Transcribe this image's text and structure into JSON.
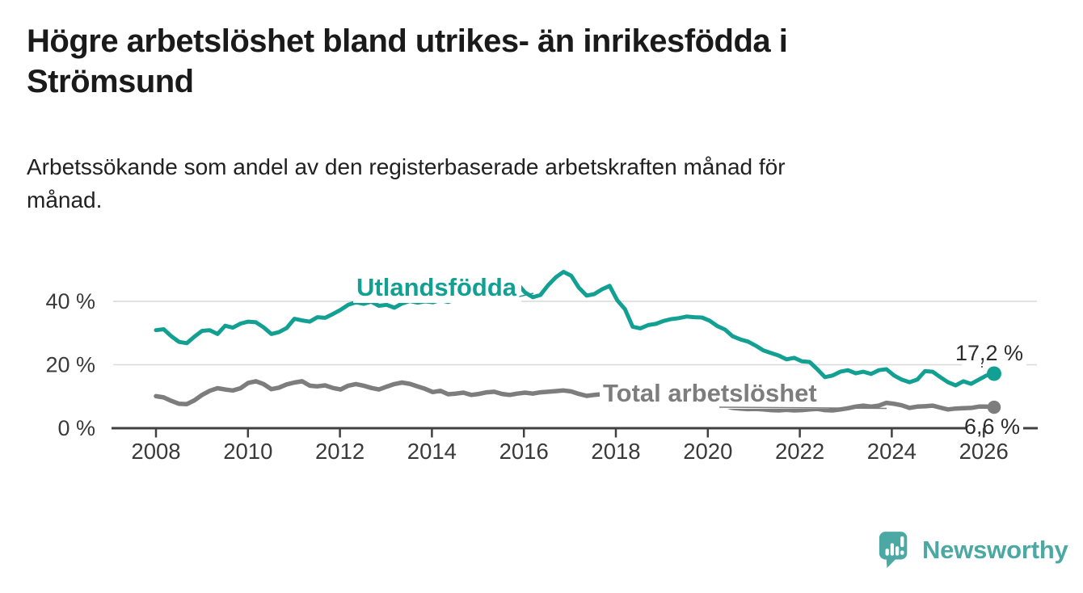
{
  "title_lines": [
    "Högre arbetslöshet bland utrikes- än inrikesfödda i",
    "Strömsund"
  ],
  "subtitle_lines": [
    "Arbetssökande som andel av den registerbaserade arbetskraften månad för",
    "månad."
  ],
  "chart_data": {
    "type": "line",
    "title": "",
    "xlabel": "",
    "ylabel": "",
    "x_unit": "year (monthly observations)",
    "y_unit": "percent of labour force",
    "x_start": 2008.0,
    "x_step_years": 0.1672,
    "xlim": [
      2007.05,
      2027.1
    ],
    "ylim": [
      0,
      52
    ],
    "grid": "horizontal gridlines at 20 and 40",
    "legend_position": "inline labels on lines",
    "x_axis_ticks": [
      2008,
      2010,
      2012,
      2014,
      2016,
      2018,
      2020,
      2022,
      2024,
      2026
    ],
    "x_tick_labels": [
      "2008",
      "2010",
      "2012",
      "2014",
      "2016",
      "2018",
      "2020",
      "2022",
      "2024",
      "2026"
    ],
    "y_axis_ticks": [
      0,
      20,
      40
    ],
    "y_tick_labels": [
      "0 %",
      "20 %",
      "40 %"
    ],
    "axis_color": "#414141",
    "gridline_color": "#d9d9d9",
    "tick_label_color": "#3a3a3a",
    "value_label_color": "#2b2b2b",
    "series": [
      {
        "name": "Utlandsfödda",
        "color": "#12A092",
        "end_label": "17,2 %",
        "end_value": 17.2,
        "values": [
          30.9,
          31.2,
          29.0,
          27.2,
          26.8,
          28.9,
          30.7,
          30.9,
          29.7,
          32.3,
          31.7,
          33.0,
          33.6,
          33.4,
          31.8,
          29.7,
          30.3,
          31.6,
          34.5,
          34.0,
          33.6,
          35.0,
          34.8,
          36.0,
          37.3,
          38.9,
          39.7,
          39.2,
          39.9,
          38.6,
          38.9,
          38.0,
          39.3,
          40.1,
          39.6,
          40.0,
          39.7,
          40.4,
          39.8,
          40.6,
          40.2,
          41.0,
          41.6,
          42.4,
          43.2,
          44.4,
          47.4,
          45.6,
          42.8,
          41.3,
          42.0,
          45.1,
          47.6,
          49.3,
          48.1,
          44.3,
          41.8,
          42.3,
          43.8,
          44.9,
          40.3,
          37.5,
          32.0,
          31.5,
          32.5,
          32.9,
          33.8,
          34.4,
          34.7,
          35.2,
          35.0,
          34.9,
          33.9,
          32.2,
          31.1,
          29.0,
          28.0,
          27.3,
          26.0,
          24.5,
          23.7,
          22.9,
          21.7,
          22.2,
          21.1,
          20.9,
          18.6,
          16.1,
          16.6,
          17.8,
          18.3,
          17.3,
          17.8,
          17.1,
          18.3,
          18.6,
          16.6,
          15.3,
          14.5,
          15.3,
          18.0,
          17.8,
          16.1,
          14.5,
          13.5,
          14.8,
          14.0,
          15.3,
          16.6,
          17.2
        ]
      },
      {
        "name": "Total arbetslöshet",
        "color": "#7D7D7D",
        "end_label": "6,6 %",
        "end_value": 6.6,
        "values": [
          10.1,
          9.7,
          8.6,
          7.7,
          7.6,
          8.8,
          10.5,
          11.8,
          12.6,
          12.2,
          11.9,
          12.6,
          14.3,
          14.8,
          13.9,
          12.3,
          12.8,
          13.8,
          14.4,
          14.8,
          13.4,
          13.2,
          13.5,
          12.7,
          12.2,
          13.4,
          13.9,
          13.4,
          12.7,
          12.2,
          13.1,
          13.9,
          14.4,
          14.0,
          13.2,
          12.4,
          11.4,
          11.8,
          10.7,
          10.9,
          11.2,
          10.5,
          10.8,
          11.3,
          11.5,
          10.8,
          10.5,
          10.9,
          11.2,
          10.9,
          11.3,
          11.5,
          11.7,
          11.9,
          11.6,
          10.8,
          10.2,
          10.5,
          10.7,
          10.4,
          10.6,
          10.9,
          10.4,
          10.0,
          10.3,
          9.9,
          10.1,
          10.4,
          9.9,
          9.6,
          9.8,
          9.4,
          9.0,
          8.0,
          7.0,
          6.4,
          6.2,
          6.0,
          6.1,
          5.9,
          5.7,
          5.6,
          5.8,
          5.6,
          5.7,
          5.9,
          6.1,
          5.7,
          5.6,
          5.9,
          6.3,
          6.8,
          7.1,
          6.8,
          7.1,
          8.0,
          7.7,
          7.2,
          6.4,
          6.8,
          6.9,
          7.1,
          6.5,
          5.9,
          6.2,
          6.3,
          6.4,
          6.8,
          6.8,
          6.6
        ]
      }
    ]
  },
  "logo": {
    "text": "Newsworthy",
    "color": "#4BA8A2",
    "icon": "newsworthy-chart-bubble-icon"
  }
}
